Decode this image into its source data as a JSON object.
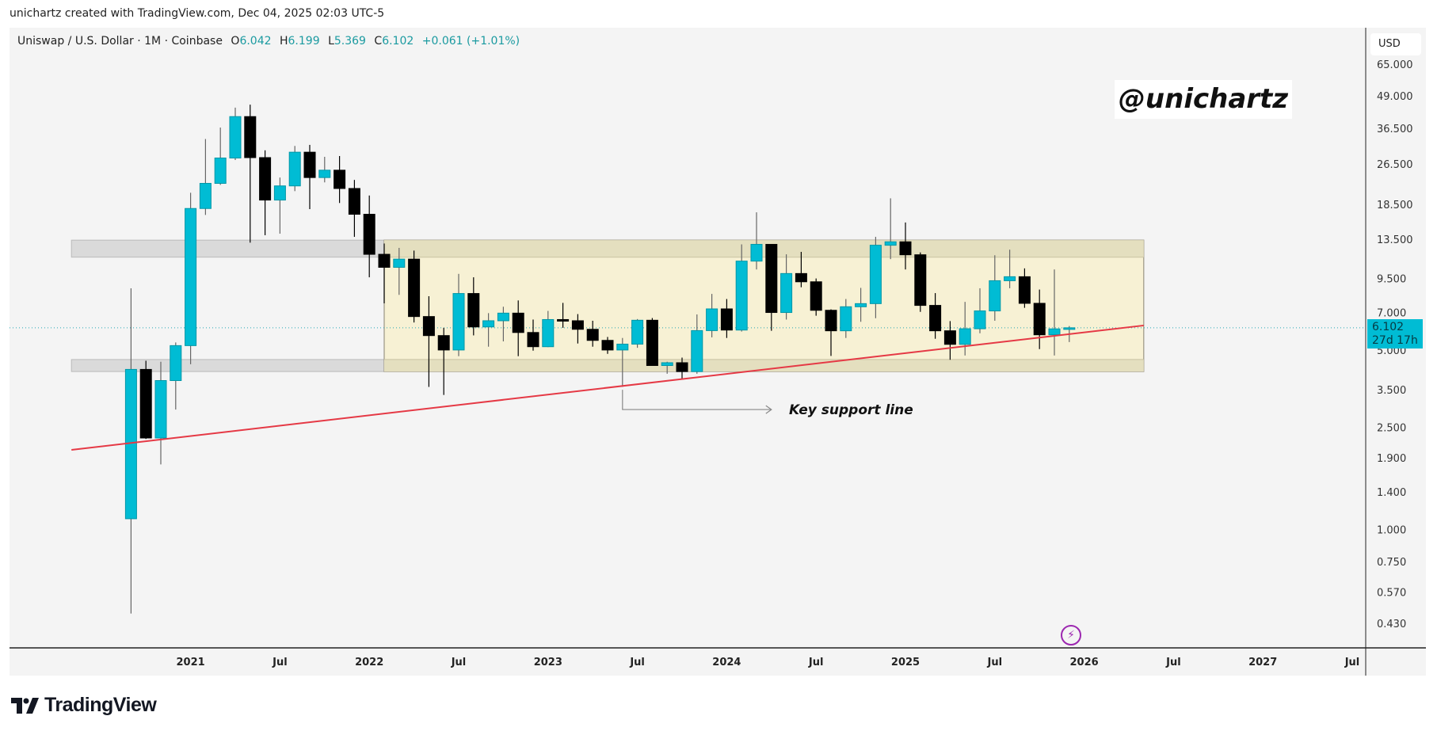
{
  "attribution": "unichartz created with TradingView.com, Dec 04, 2025 02:03 UTC-5",
  "legend": {
    "symbol": "Uniswap / U.S. Dollar · 1M · Coinbase",
    "open_label": "O",
    "open": "6.042",
    "high_label": "H",
    "high": "6.199",
    "low_label": "L",
    "low": "5.369",
    "close_label": "C",
    "close": "6.102",
    "change": "+0.061 (+1.01%)"
  },
  "currency_button": "USD",
  "watermark": "@unichartz",
  "last_price": {
    "value": "6.102",
    "countdown": "27d 17h",
    "price": 6.102
  },
  "annotation": {
    "text": "Key support line",
    "arrow_from": [
      "2023-06",
      3.5
    ],
    "arrow_corner": [
      "2023-06",
      2.93
    ],
    "arrow_to": [
      "2024-04",
      2.93
    ]
  },
  "alert_icon": "lightning-icon",
  "logo_text": "TradingView",
  "colors": {
    "up": "#00bcd4",
    "up_border": "#0097a7",
    "down": "#000000",
    "trendline": "#e53945",
    "box": "#f7f1d4",
    "zone": "#e4dfbf",
    "gray_zone": "#dadada",
    "accent": "#00bcd4"
  },
  "chart_data": {
    "type": "candlestick",
    "title": "Uniswap / U.S. Dollar · 1M · Coinbase",
    "scale": "log",
    "ylim": [
      0.4,
      70
    ],
    "y_ticks": [
      "65.000",
      "49.000",
      "36.500",
      "26.500",
      "18.500",
      "13.500",
      "9.500",
      "7.000",
      "5.000",
      "3.500",
      "2.500",
      "1.900",
      "1.400",
      "1.000",
      "0.750",
      "0.570",
      "0.430"
    ],
    "x_ticks": [
      {
        "label": "2021",
        "date": "2021-01"
      },
      {
        "label": "Jul",
        "date": "2021-07"
      },
      {
        "label": "2022",
        "date": "2022-01"
      },
      {
        "label": "Jul",
        "date": "2022-07"
      },
      {
        "label": "2023",
        "date": "2023-01"
      },
      {
        "label": "Jul",
        "date": "2023-07"
      },
      {
        "label": "2024",
        "date": "2024-01"
      },
      {
        "label": "Jul",
        "date": "2024-07"
      },
      {
        "label": "2025",
        "date": "2025-01"
      },
      {
        "label": "Jul",
        "date": "2025-07"
      },
      {
        "label": "2026",
        "date": "2026-01"
      },
      {
        "label": "Jul",
        "date": "2026-07"
      },
      {
        "label": "2027",
        "date": "2027-01"
      },
      {
        "label": "Jul",
        "date": "2027-07"
      }
    ],
    "columns": [
      "date",
      "open",
      "high",
      "low",
      "close"
    ],
    "candles": [
      [
        "2020-09",
        1.1,
        8.7,
        0.47,
        4.2
      ],
      [
        "2020-10",
        4.2,
        4.54,
        2.25,
        2.27
      ],
      [
        "2020-11",
        2.27,
        4.5,
        1.79,
        3.8
      ],
      [
        "2020-12",
        3.8,
        5.35,
        2.93,
        5.2
      ],
      [
        "2021-01",
        5.2,
        20.5,
        4.4,
        17.8
      ],
      [
        "2021-02",
        17.8,
        33.2,
        16.8,
        22.3
      ],
      [
        "2021-03",
        22.3,
        36.8,
        22.0,
        28.0
      ],
      [
        "2021-04",
        28.0,
        44.0,
        27.5,
        40.6
      ],
      [
        "2021-05",
        40.6,
        45.2,
        13.1,
        28.1
      ],
      [
        "2021-06",
        28.1,
        30.0,
        14.0,
        19.2
      ],
      [
        "2021-07",
        19.2,
        23.5,
        14.2,
        21.8
      ],
      [
        "2021-08",
        21.8,
        31.2,
        20.8,
        29.5
      ],
      [
        "2021-09",
        29.5,
        31.5,
        17.7,
        23.5
      ],
      [
        "2021-10",
        23.5,
        28.3,
        22.5,
        25.1
      ],
      [
        "2021-11",
        25.1,
        28.5,
        18.7,
        21.3
      ],
      [
        "2021-12",
        21.3,
        23.0,
        13.8,
        16.9
      ],
      [
        "2022-01",
        16.9,
        20.0,
        9.6,
        11.8
      ],
      [
        "2022-02",
        11.8,
        13.0,
        7.6,
        10.5
      ],
      [
        "2022-03",
        10.5,
        12.5,
        8.2,
        11.3
      ],
      [
        "2022-04",
        11.3,
        12.2,
        6.4,
        6.75
      ],
      [
        "2022-05",
        6.75,
        8.1,
        3.59,
        5.69
      ],
      [
        "2022-06",
        5.69,
        6.1,
        3.34,
        5.0
      ],
      [
        "2022-07",
        5.0,
        9.9,
        4.73,
        8.3
      ],
      [
        "2022-08",
        8.3,
        9.6,
        5.7,
        6.15
      ],
      [
        "2022-09",
        6.15,
        6.96,
        5.15,
        6.5
      ],
      [
        "2022-10",
        6.5,
        7.37,
        5.4,
        6.96
      ],
      [
        "2022-11",
        6.96,
        7.8,
        4.73,
        5.85
      ],
      [
        "2022-12",
        5.85,
        6.57,
        4.97,
        5.15
      ],
      [
        "2023-01",
        5.15,
        7.1,
        5.13,
        6.57
      ],
      [
        "2023-02",
        6.57,
        7.63,
        6.1,
        6.5
      ],
      [
        "2023-03",
        6.5,
        6.9,
        5.3,
        6.02
      ],
      [
        "2023-04",
        6.02,
        6.5,
        5.15,
        5.45
      ],
      [
        "2023-05",
        5.45,
        5.62,
        4.83,
        5.0
      ],
      [
        "2023-06",
        5.0,
        5.57,
        3.59,
        5.27
      ],
      [
        "2023-07",
        5.27,
        6.6,
        5.1,
        6.53
      ],
      [
        "2023-08",
        6.53,
        6.66,
        4.35,
        4.35
      ],
      [
        "2023-09",
        4.35,
        4.5,
        4.04,
        4.46
      ],
      [
        "2023-10",
        4.46,
        4.67,
        3.84,
        4.12
      ],
      [
        "2023-11",
        4.12,
        6.88,
        4.04,
        5.95
      ],
      [
        "2023-12",
        5.95,
        8.27,
        5.6,
        7.23
      ],
      [
        "2024-01",
        7.23,
        7.9,
        5.57,
        5.98
      ],
      [
        "2024-02",
        5.98,
        12.9,
        5.9,
        11.1
      ],
      [
        "2024-03",
        11.1,
        17.2,
        10.3,
        12.9
      ],
      [
        "2024-04",
        12.9,
        12.9,
        5.94,
        7.0
      ],
      [
        "2024-05",
        7.0,
        11.8,
        6.57,
        9.93
      ],
      [
        "2024-06",
        9.93,
        12.06,
        8.78,
        9.22
      ],
      [
        "2024-07",
        9.22,
        9.5,
        6.8,
        7.14
      ],
      [
        "2024-08",
        7.14,
        7.2,
        4.74,
        5.94
      ],
      [
        "2024-09",
        5.94,
        7.9,
        5.57,
        7.37
      ],
      [
        "2024-10",
        7.37,
        8.73,
        6.44,
        7.58
      ],
      [
        "2024-11",
        7.58,
        13.8,
        6.65,
        12.8
      ],
      [
        "2024-12",
        12.8,
        19.5,
        11.3,
        13.2
      ],
      [
        "2025-01",
        13.2,
        15.7,
        10.3,
        11.75
      ],
      [
        "2025-02",
        11.75,
        12.0,
        7.04,
        7.46
      ],
      [
        "2025-03",
        7.46,
        8.33,
        5.53,
        5.94
      ],
      [
        "2025-04",
        5.94,
        6.48,
        4.58,
        5.26
      ],
      [
        "2025-05",
        5.26,
        7.7,
        4.76,
        6.05
      ],
      [
        "2025-06",
        6.05,
        8.7,
        5.81,
        7.1
      ],
      [
        "2025-07",
        7.1,
        11.7,
        6.5,
        9.31
      ],
      [
        "2025-08",
        9.31,
        12.3,
        8.7,
        9.65
      ],
      [
        "2025-09",
        9.65,
        10.4,
        7.3,
        7.6
      ],
      [
        "2025-10",
        7.6,
        8.6,
        5.04,
        5.73
      ],
      [
        "2025-11",
        5.73,
        10.3,
        4.76,
        6.042
      ],
      [
        "2025-12",
        6.042,
        6.199,
        5.369,
        6.102
      ]
    ],
    "drawings": {
      "trendline": [
        [
          "2020-05",
          2.04
        ],
        [
          "2026-05",
          6.23
        ]
      ],
      "range_box": {
        "from": "2022-02",
        "to": "2026-05",
        "top": 13.4,
        "upper_zone_bottom": 11.5,
        "lower_zone_top": 4.59,
        "bottom": 4.12
      },
      "gray_zones": [
        {
          "from": "2020-05",
          "to": "2022-02",
          "top": 13.4,
          "bottom": 11.5
        },
        {
          "from": "2020-05",
          "to": "2022-02",
          "top": 4.59,
          "bottom": 4.12
        }
      ]
    }
  }
}
